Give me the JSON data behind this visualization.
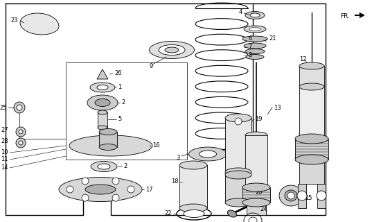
{
  "bg_color": "#ffffff",
  "line_color": "#000000",
  "fig_width": 5.37,
  "fig_height": 3.2,
  "dpi": 100
}
